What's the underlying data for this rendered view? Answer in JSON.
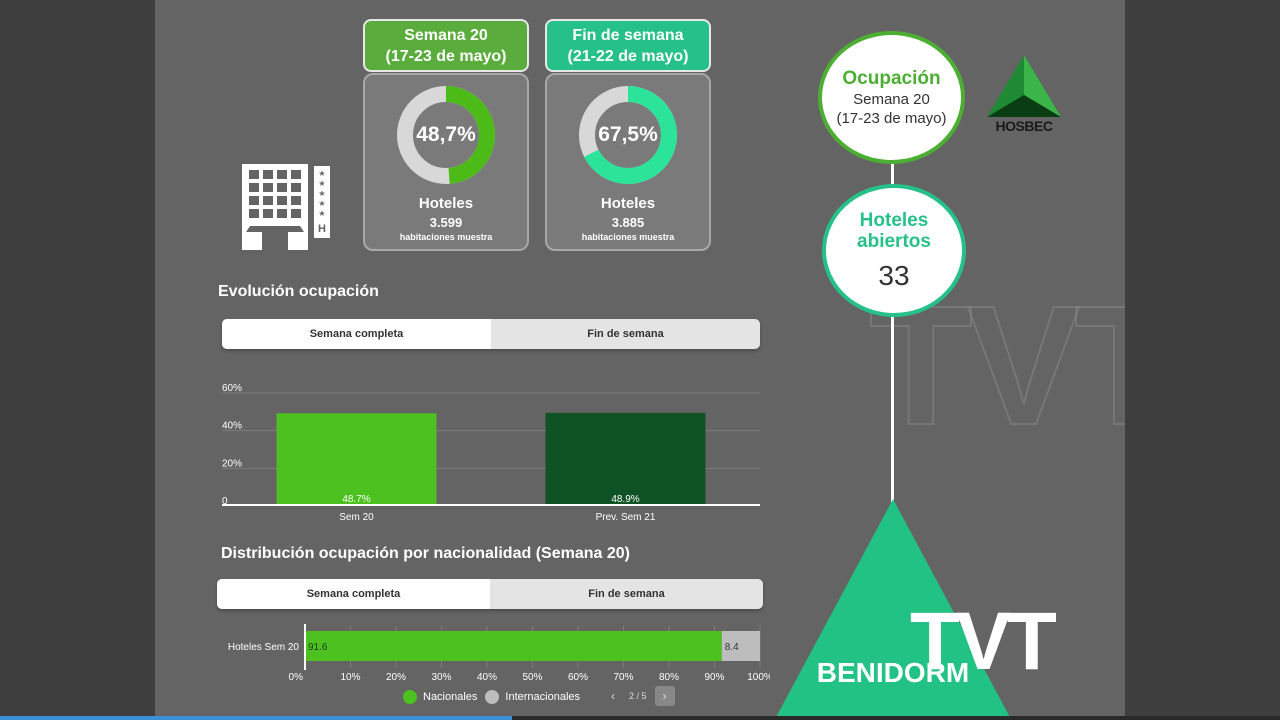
{
  "header_cards": [
    {
      "title_line1": "Semana 20",
      "title_line2": "(17-23 de mayo)",
      "donut_value": "48,7%",
      "donut_fraction": 0.487,
      "color": "#4cbb17",
      "label": "Hoteles",
      "number": "3.599",
      "subtitle": "habitaciones muestra"
    },
    {
      "title_line1": "Fin de semana",
      "title_line2": "(21-22 de mayo)",
      "donut_value": "67,5%",
      "donut_fraction": 0.675,
      "color": "#2ce39a",
      "label": "Hoteles",
      "number": "3.885",
      "subtitle": "habitaciones muestra"
    }
  ],
  "evolucion": {
    "title": "Evolución ocupación",
    "tabs": [
      "Semana completa",
      "Fin de semana"
    ],
    "active_tab": 0
  },
  "distribucion": {
    "title": "Distribución ocupación por nacionalidad (Semana 20)",
    "tabs": [
      "Semana completa",
      "Fin de semana"
    ],
    "active_tab": 0
  },
  "chart_data": [
    {
      "type": "bar",
      "categories": [
        "Sem 20",
        "Prev. Sem 21"
      ],
      "values": [
        48.7,
        48.9
      ],
      "value_labels": [
        "48.7%",
        "48.9%"
      ],
      "colors": [
        "#4cc11f",
        "#0f5223"
      ],
      "yticks": [
        "60%",
        "40%",
        "20%",
        "0"
      ],
      "ytick_values": [
        60,
        40,
        20,
        0
      ],
      "ylim": [
        0,
        60
      ],
      "grid": true
    },
    {
      "type": "bar",
      "orientation": "horizontal",
      "stacked": true,
      "categories": [
        "Hoteles Sem 20"
      ],
      "series": [
        {
          "name": "Nacionales",
          "values": [
            91.6
          ],
          "color": "#4cc11f"
        },
        {
          "name": "Internacionales",
          "values": [
            8.4
          ],
          "color": "#bdbdbd"
        }
      ],
      "value_labels": [
        "91.6",
        "8.4"
      ],
      "xticks": [
        "0%",
        "10%",
        "20%",
        "30%",
        "40%",
        "50%",
        "60%",
        "70%",
        "80%",
        "90%",
        "100%"
      ],
      "xlim": [
        0,
        100
      ],
      "legend_position": "bottom"
    }
  ],
  "pager": {
    "prev": "‹",
    "page": "2 / 5",
    "next": "›"
  },
  "right_panel": {
    "ocupacion_title": "Ocupación",
    "ocupacion_line1": "Semana 20",
    "ocupacion_line2": "(17-23 de mayo)",
    "hoteles_title_line1": "Hoteles",
    "hoteles_title_line2": "abiertos",
    "hoteles_count": "33",
    "city": "BENIDORM",
    "logo_text": "HOSBEC"
  },
  "watermark": "TVT",
  "playback_progress": 0.4
}
